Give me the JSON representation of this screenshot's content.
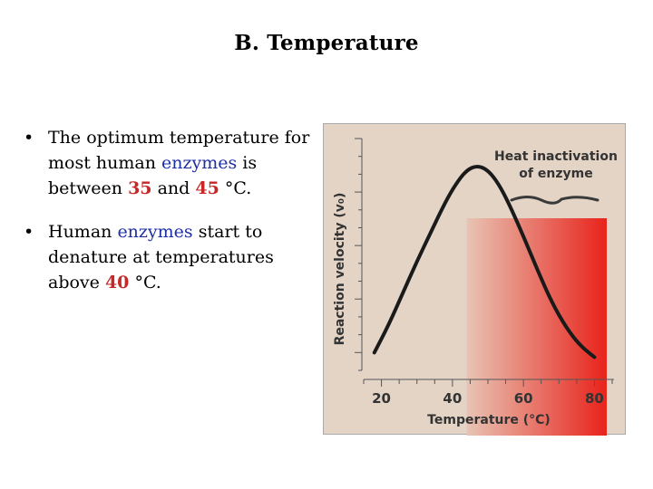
{
  "slide": {
    "title": "B. Temperature",
    "bullets": [
      {
        "parts": [
          {
            "text": "The optimum temperature for most human ",
            "style": "normal"
          },
          {
            "text": "enzymes",
            "style": "blue"
          },
          {
            "text": " is between ",
            "style": "normal"
          },
          {
            "text": "35",
            "style": "red"
          },
          {
            "text": " and ",
            "style": "normal"
          },
          {
            "text": "45",
            "style": "red"
          },
          {
            "text": " °C.",
            "style": "normal"
          }
        ]
      },
      {
        "parts": [
          {
            "text": "Human ",
            "style": "normal"
          },
          {
            "text": "enzymes",
            "style": "blue"
          },
          {
            "text": " start to denature at temperatures above ",
            "style": "normal"
          },
          {
            "text": "40",
            "style": "red"
          },
          {
            "text": " °C.",
            "style": "normal"
          }
        ]
      }
    ]
  },
  "chart_data": {
    "type": "line",
    "xlabel": "Temperature (°C)",
    "ylabel": "Reaction velocity (v₀)",
    "xticks": [
      20,
      40,
      60,
      80
    ],
    "xlim": [
      15,
      85
    ],
    "ylim": [
      0,
      1
    ],
    "annotation": "Heat inactivation\nof enzyme",
    "inactivation_start_x": 44,
    "series": [
      {
        "x": [
          18,
          22,
          26,
          30,
          34,
          38,
          41,
          44,
          47,
          50,
          53,
          56,
          60,
          64,
          68,
          72,
          76,
          80
        ],
        "y": [
          0.07,
          0.19,
          0.33,
          0.47,
          0.6,
          0.73,
          0.81,
          0.87,
          0.89,
          0.87,
          0.81,
          0.72,
          0.58,
          0.43,
          0.29,
          0.18,
          0.1,
          0.05
        ]
      }
    ],
    "colors": {
      "panel": "#e3d4c6",
      "heat_start": "#e8c4b4",
      "heat_end": "#e8231b",
      "curve": "#1a1a1a"
    }
  }
}
